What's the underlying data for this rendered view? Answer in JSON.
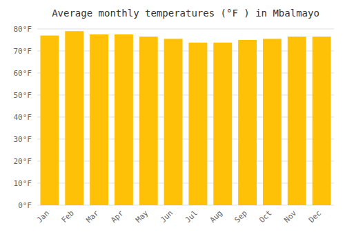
{
  "chart_data": {
    "type": "bar",
    "title": "Average monthly temperatures (°F ) in Mbalmayo",
    "categories": [
      "Jan",
      "Feb",
      "Mar",
      "Apr",
      "May",
      "Jun",
      "Jul",
      "Aug",
      "Sep",
      "Oct",
      "Nov",
      "Dec"
    ],
    "values": [
      77.0,
      79.0,
      77.5,
      77.5,
      76.5,
      75.5,
      73.8,
      73.8,
      75.0,
      75.5,
      76.5,
      76.5
    ],
    "color": "#FFC107",
    "ylim": [
      0,
      80
    ],
    "yticks": [
      {
        "value": 0,
        "label": "0°F"
      },
      {
        "value": 10,
        "label": "10°F"
      },
      {
        "value": 20,
        "label": "20°F"
      },
      {
        "value": 30,
        "label": "30°F"
      },
      {
        "value": 40,
        "label": "40°F"
      },
      {
        "value": 50,
        "label": "50°F"
      },
      {
        "value": 60,
        "label": "60°F"
      },
      {
        "value": 70,
        "label": "70°F"
      },
      {
        "value": 80,
        "label": "80°F"
      }
    ],
    "grid": true
  }
}
